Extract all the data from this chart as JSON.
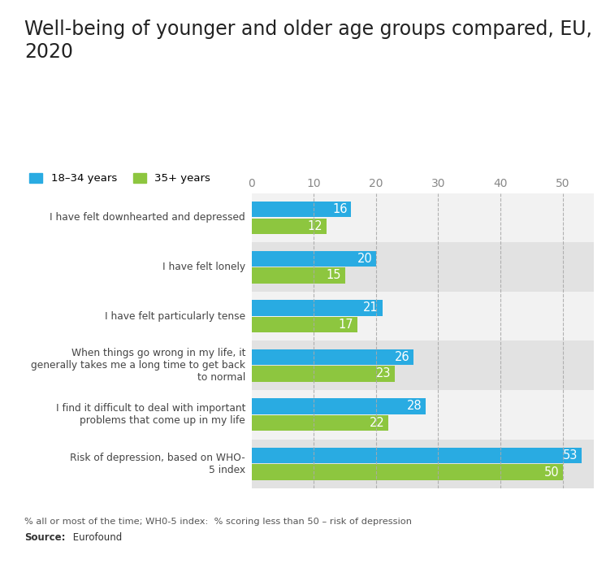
{
  "title": "Well-being of younger and older age groups compared, EU,\n2020",
  "categories": [
    "I have felt downhearted and depressed",
    "I have felt lonely",
    "I have felt particularly tense",
    "When things go wrong in my life, it\ngenerally takes me a long time to get back\nto normal",
    "I find it difficult to deal with important\nproblems that come up in my life",
    "Risk of depression, based on WHO-\n5 index"
  ],
  "values_young": [
    16,
    20,
    21,
    26,
    28,
    53
  ],
  "values_old": [
    12,
    15,
    17,
    23,
    22,
    50
  ],
  "color_young": "#29ABE2",
  "color_old": "#8DC63F",
  "legend_young": "18–34 years",
  "legend_old": "35+ years",
  "xlim": [
    0,
    55
  ],
  "xticks": [
    0,
    10,
    20,
    30,
    40,
    50
  ],
  "bar_height": 0.32,
  "background_color": "#e8e8e8",
  "row_bg_light": "#f2f2f2",
  "row_bg_dark": "#e2e2e2",
  "footnote": "% all or most of the time; WH0-5 index:  % scoring less than 50 – risk of depression",
  "source": "Eurofound",
  "title_fontsize": 17,
  "label_fontsize": 10.5,
  "tick_fontsize": 10
}
